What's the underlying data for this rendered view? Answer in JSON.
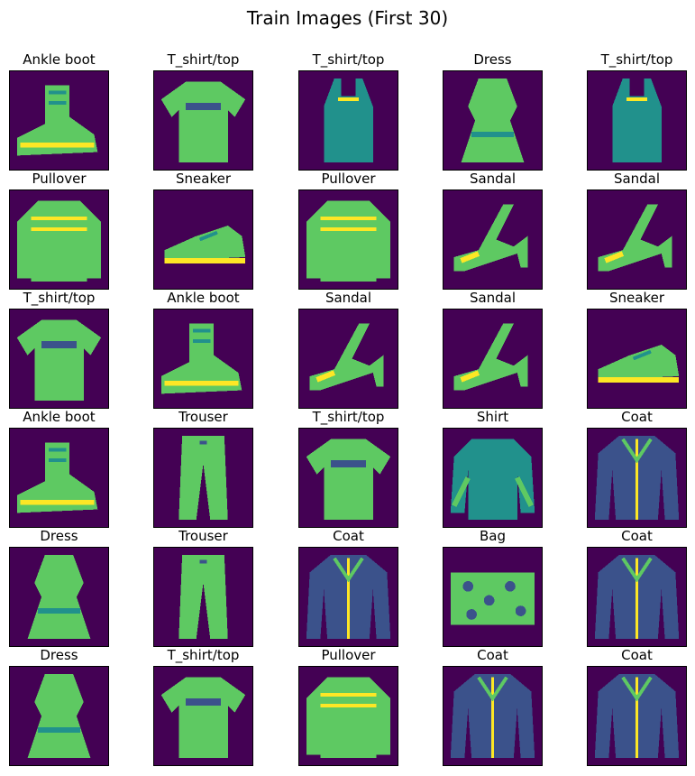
{
  "figure": {
    "title": "Train Images (First 30)",
    "colormap": [
      "#440154",
      "#3b528b",
      "#21918c",
      "#5ec962",
      "#fde725"
    ]
  },
  "images": [
    {
      "label": "Ankle boot",
      "item": "ankle-boot"
    },
    {
      "label": "T_shirt/top",
      "item": "tshirt"
    },
    {
      "label": "T_shirt/top",
      "item": "tank-top"
    },
    {
      "label": "Dress",
      "item": "dress"
    },
    {
      "label": "T_shirt/top",
      "item": "tank-top"
    },
    {
      "label": "Pullover",
      "item": "pullover"
    },
    {
      "label": "Sneaker",
      "item": "sneaker"
    },
    {
      "label": "Pullover",
      "item": "pullover"
    },
    {
      "label": "Sandal",
      "item": "sandal"
    },
    {
      "label": "Sandal",
      "item": "sandal"
    },
    {
      "label": "T_shirt/top",
      "item": "tshirt"
    },
    {
      "label": "Ankle boot",
      "item": "ankle-boot"
    },
    {
      "label": "Sandal",
      "item": "sandal"
    },
    {
      "label": "Sandal",
      "item": "sandal"
    },
    {
      "label": "Sneaker",
      "item": "sneaker"
    },
    {
      "label": "Ankle boot",
      "item": "ankle-boot"
    },
    {
      "label": "Trouser",
      "item": "trouser"
    },
    {
      "label": "T_shirt/top",
      "item": "tshirt"
    },
    {
      "label": "Shirt",
      "item": "shirt"
    },
    {
      "label": "Coat",
      "item": "coat"
    },
    {
      "label": "Dress",
      "item": "dress"
    },
    {
      "label": "Trouser",
      "item": "trouser"
    },
    {
      "label": "Coat",
      "item": "coat"
    },
    {
      "label": "Bag",
      "item": "bag"
    },
    {
      "label": "Coat",
      "item": "coat"
    },
    {
      "label": "Dress",
      "item": "dress"
    },
    {
      "label": "T_shirt/top",
      "item": "tshirt"
    },
    {
      "label": "Pullover",
      "item": "pullover"
    },
    {
      "label": "Coat",
      "item": "coat"
    },
    {
      "label": "Coat",
      "item": "coat"
    }
  ]
}
